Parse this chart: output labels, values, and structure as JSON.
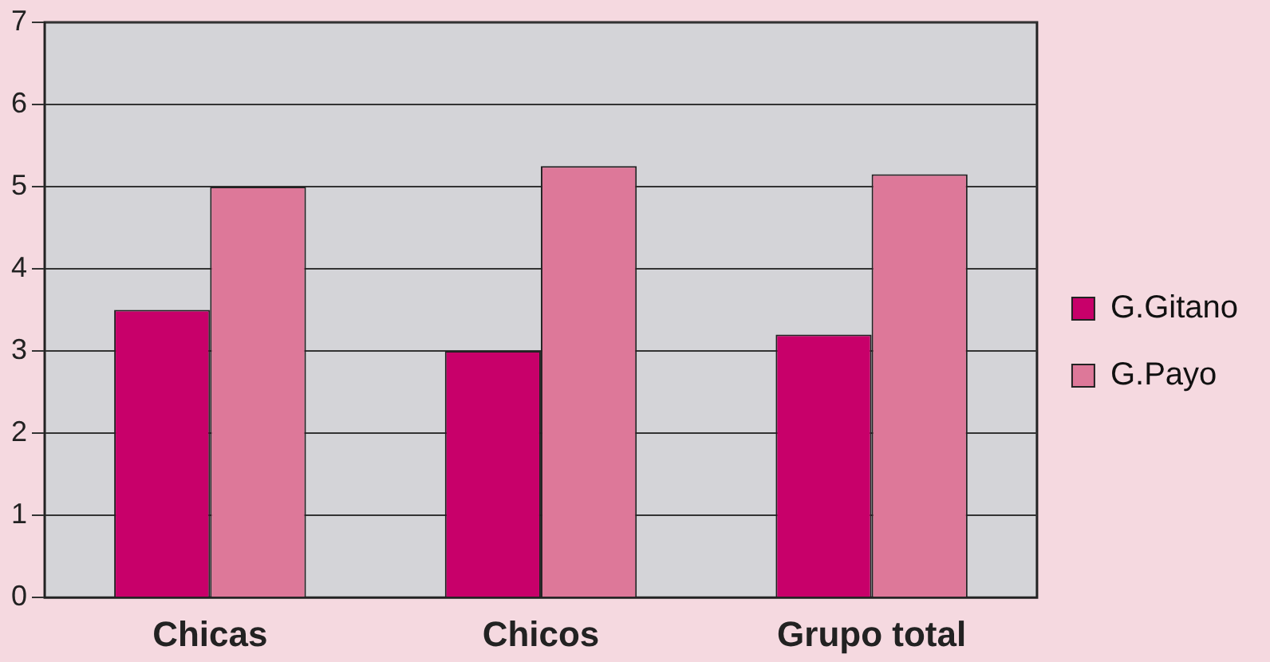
{
  "chart_data": {
    "type": "bar",
    "categories": [
      "Chicas",
      "Chicos",
      "Grupo total"
    ],
    "series": [
      {
        "name": "G.Gitano",
        "color": "#c8006a",
        "values": [
          3.5,
          3.0,
          3.2
        ]
      },
      {
        "name": "G.Payo",
        "color": "#dd7899",
        "values": [
          5.0,
          5.25,
          5.15
        ]
      }
    ],
    "ylim": [
      0,
      7
    ],
    "yticks": [
      0,
      1,
      2,
      3,
      4,
      5,
      6,
      7
    ],
    "grid": "y",
    "legend": "right"
  }
}
